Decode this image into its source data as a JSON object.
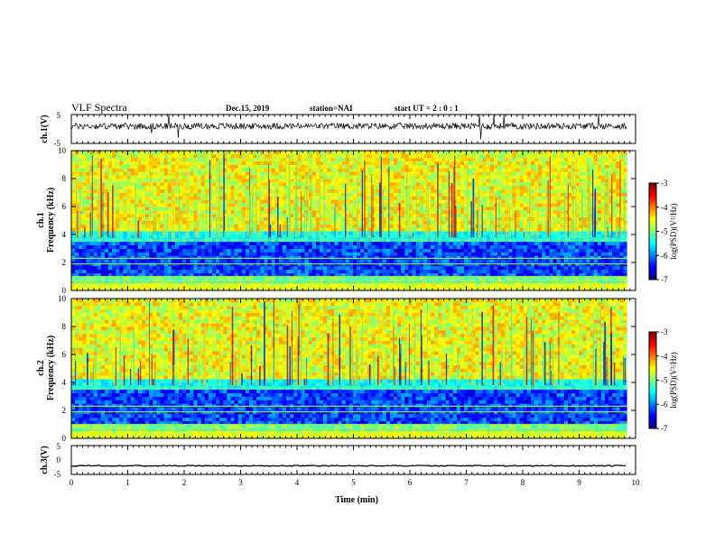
{
  "header": {
    "title": "VLF Spectra",
    "date": "Dec.15, 2019",
    "station": "station=NAI",
    "start_time": "start UT =   2 : 0  : 1"
  },
  "chart_data": [
    {
      "id": "ch1_waveform",
      "type": "line",
      "ylabel": "ch.1(V)",
      "ylim": [
        -5,
        5
      ],
      "yticks": [
        "5",
        "-5"
      ],
      "x_range_min": [
        0,
        9.85
      ],
      "description_level": "noisy waveform centered near +1 V with spikes"
    },
    {
      "id": "ch1_spectrogram",
      "type": "heatmap",
      "ylabel_line1": "ch.1",
      "ylabel_line2": "Frequency (kHz)",
      "ylim": [
        0,
        10
      ],
      "yticks": [
        "0",
        "2",
        "4",
        "6",
        "8",
        "10"
      ],
      "colorbar": {
        "label": "log(PSD)(V²/Hz)",
        "range": [
          -7,
          -3
        ],
        "ticks": [
          "-3",
          "-4",
          "-5",
          "-6",
          "-7"
        ]
      }
    },
    {
      "id": "ch2_spectrogram",
      "type": "heatmap",
      "ylabel_line1": "ch.2",
      "ylabel_line2": "Frequency (kHz)",
      "ylim": [
        0,
        10
      ],
      "yticks": [
        "0",
        "2",
        "4",
        "6",
        "8",
        "10"
      ],
      "colorbar": {
        "label": "log(PSD)(V²/Hz)",
        "range": [
          -7,
          -3
        ],
        "ticks": [
          "-3",
          "-4",
          "-5",
          "-6",
          "-7"
        ]
      }
    },
    {
      "id": "ch3_waveform",
      "type": "line",
      "ylabel": "ch.3(V)",
      "ylim": [
        -5,
        5
      ],
      "yticks": [
        "5",
        "0",
        "-5"
      ],
      "level": -2
    }
  ],
  "xaxis": {
    "label": "Time  (min)",
    "range": [
      0,
      10
    ],
    "ticks": [
      "0",
      "1",
      "2",
      "3",
      "4",
      "5",
      "6",
      "7",
      "8",
      "9",
      "10"
    ]
  },
  "colors": {
    "spectrogram_background": "#1fd16a",
    "low_band": "#0a20b0"
  }
}
